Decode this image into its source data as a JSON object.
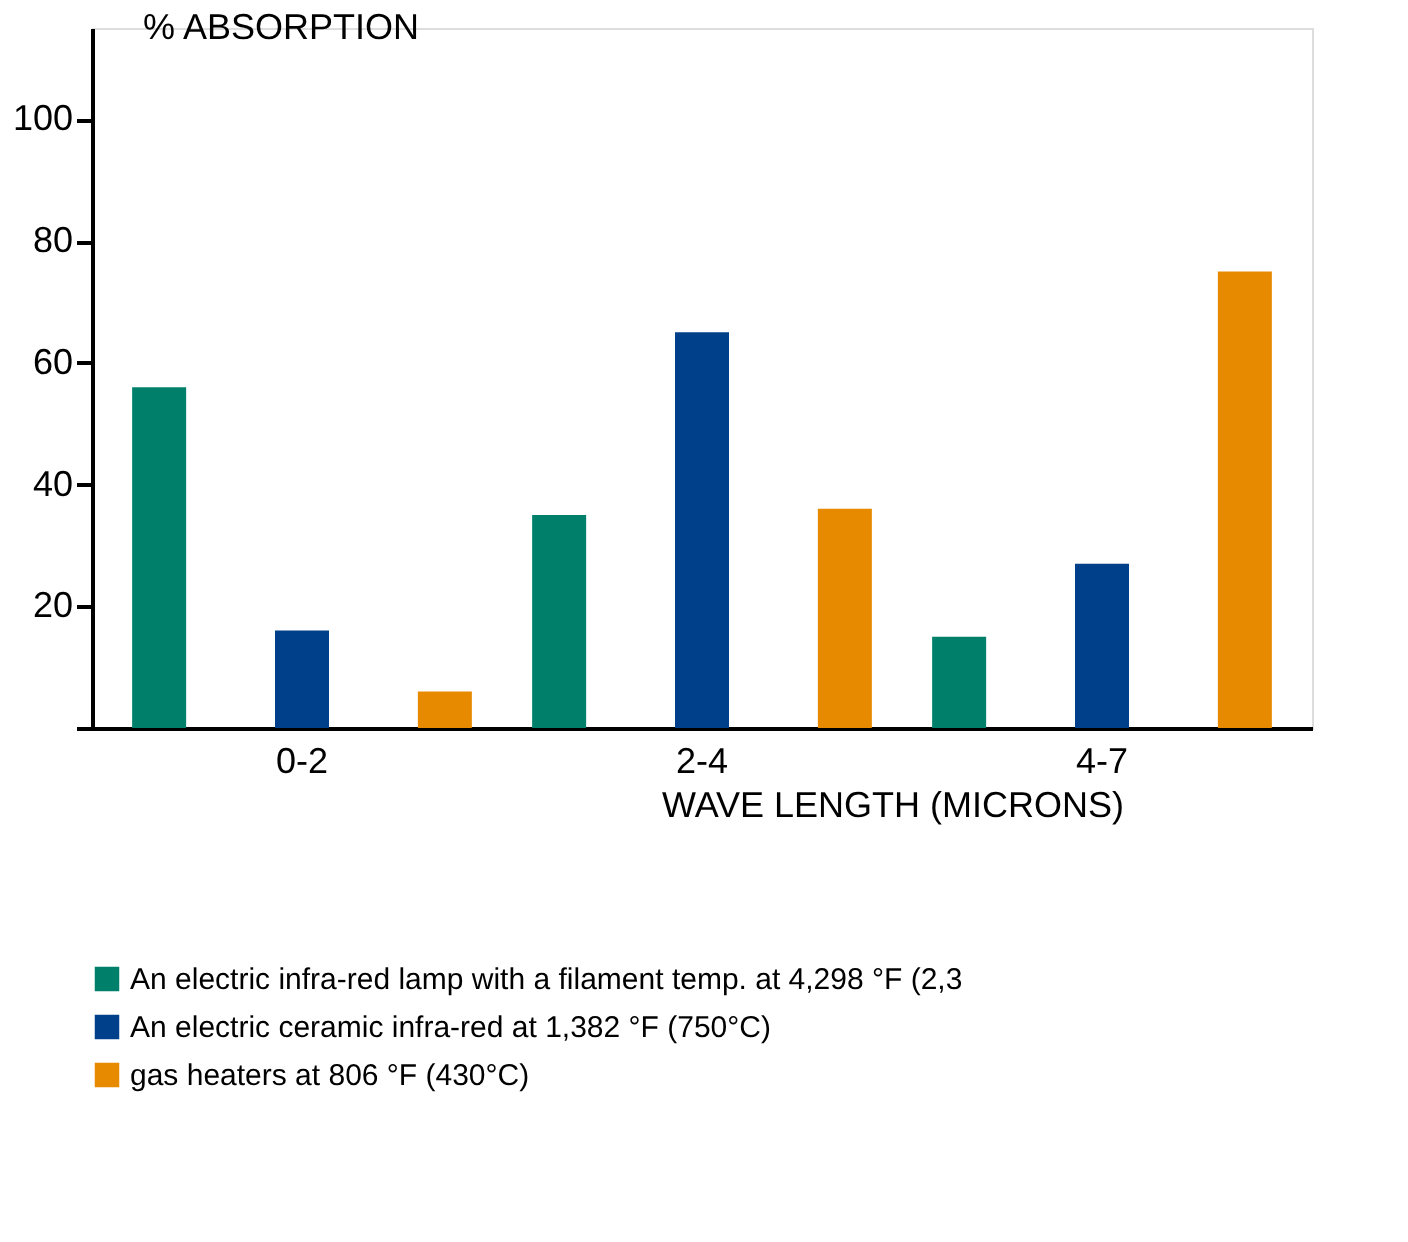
{
  "chart_data": {
    "type": "bar",
    "ylabel": "% ABSORPTION",
    "xlabel": "WAVE LENGTH (MICRONS)",
    "categories": [
      "0-2",
      "2-4",
      "4-7"
    ],
    "series": [
      {
        "name": "An electric infra-red lamp with a filament temp. at 4,298 °F (2,3",
        "color": "#00806a",
        "values": [
          56,
          35,
          15
        ]
      },
      {
        "name": "An electric ceramic infra-red at 1,382 °F (750°C)",
        "color": "#003f8a",
        "values": [
          16,
          65,
          27
        ]
      },
      {
        "name": "gas heaters at 806 °F (430°C)",
        "color": "#e88a00",
        "values": [
          6,
          36,
          75
        ]
      }
    ],
    "ylim": [
      0,
      115
    ],
    "yticks": [
      {
        "value": 0,
        "label": null
      },
      20,
      40,
      60,
      80,
      100
    ],
    "grid": false,
    "legend": "bottom"
  }
}
